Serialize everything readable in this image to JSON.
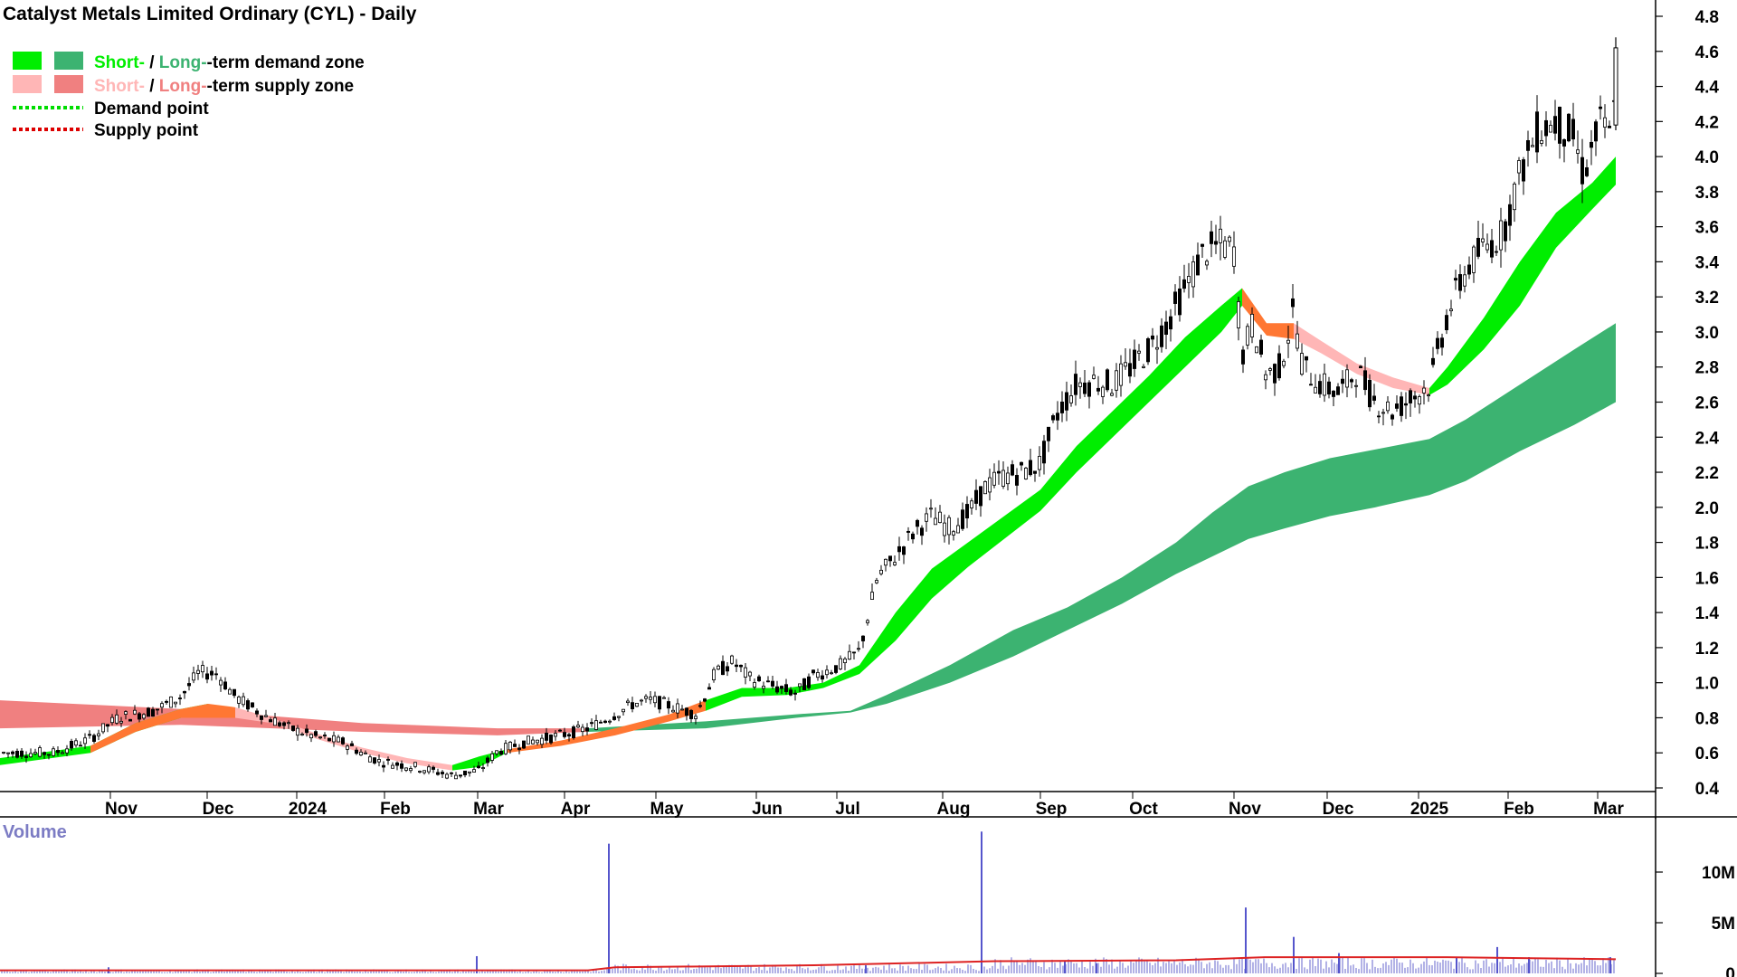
{
  "chart_data": {
    "type": "candlestick",
    "title": "Catalyst Metals Limited Ordinary (CYL) - Daily",
    "legend": [
      {
        "short_label": "Short-",
        "sep": " / ",
        "long_label": "Long-",
        "rest": "-term demand zone",
        "short_color": "#00ee00",
        "long_color": "#3cb371"
      },
      {
        "short_label": "Short-",
        "sep": " / ",
        "long_label": "Long-",
        "rest": "-term supply zone",
        "short_color": "#ffb6b6",
        "long_color": "#f08080"
      },
      {
        "label": "Demand point",
        "color": "#00dd00"
      },
      {
        "label": "Supply point",
        "color": "#dd0000"
      }
    ],
    "x_tick_labels": [
      "Nov",
      "Dec",
      "2024",
      "Feb",
      "Mar",
      "Apr",
      "May",
      "Jun",
      "Jul",
      "Aug",
      "Sep",
      "Oct",
      "Nov",
      "Dec",
      "2025",
      "Feb",
      "Mar"
    ],
    "y_ticks": [
      "0.4",
      "0.6",
      "0.8",
      "1.0",
      "1.2",
      "1.4",
      "1.6",
      "1.8",
      "2.0",
      "2.2",
      "2.4",
      "2.6",
      "2.8",
      "3.0",
      "3.2",
      "3.4",
      "3.6",
      "3.8",
      "4.0",
      "4.2",
      "4.4",
      "4.6",
      "4.8"
    ],
    "ylim": [
      0.35,
      4.9
    ],
    "price_path": [
      [
        0,
        0.6
      ],
      [
        60,
        0.6
      ],
      [
        100,
        0.68
      ],
      [
        130,
        0.8
      ],
      [
        170,
        0.84
      ],
      [
        200,
        0.92
      ],
      [
        220,
        1.06
      ],
      [
        240,
        1.05
      ],
      [
        260,
        0.92
      ],
      [
        290,
        0.82
      ],
      [
        320,
        0.74
      ],
      [
        350,
        0.69
      ],
      [
        380,
        0.66
      ],
      [
        400,
        0.6
      ],
      [
        420,
        0.55
      ],
      [
        460,
        0.52
      ],
      [
        500,
        0.47
      ],
      [
        530,
        0.5
      ],
      [
        550,
        0.61
      ],
      [
        580,
        0.66
      ],
      [
        620,
        0.7
      ],
      [
        650,
        0.74
      ],
      [
        680,
        0.82
      ],
      [
        700,
        0.88
      ],
      [
        720,
        0.9
      ],
      [
        740,
        0.87
      ],
      [
        770,
        0.82
      ],
      [
        790,
        1.05
      ],
      [
        810,
        1.12
      ],
      [
        830,
        1.02
      ],
      [
        860,
        0.97
      ],
      [
        880,
        0.94
      ],
      [
        900,
        1.04
      ],
      [
        930,
        1.1
      ],
      [
        950,
        1.18
      ],
      [
        970,
        1.6
      ],
      [
        990,
        1.72
      ],
      [
        1010,
        1.86
      ],
      [
        1030,
        1.95
      ],
      [
        1050,
        1.88
      ],
      [
        1070,
        1.96
      ],
      [
        1090,
        2.12
      ],
      [
        1110,
        2.18
      ],
      [
        1130,
        2.2
      ],
      [
        1150,
        2.25
      ],
      [
        1170,
        2.55
      ],
      [
        1190,
        2.7
      ],
      [
        1210,
        2.72
      ],
      [
        1230,
        2.7
      ],
      [
        1250,
        2.8
      ],
      [
        1270,
        2.9
      ],
      [
        1290,
        3.05
      ],
      [
        1310,
        3.25
      ],
      [
        1330,
        3.45
      ],
      [
        1350,
        3.5
      ],
      [
        1365,
        3.46
      ],
      [
        1372,
        2.85
      ],
      [
        1385,
        3.05
      ],
      [
        1400,
        2.75
      ],
      [
        1415,
        2.8
      ],
      [
        1430,
        3.12
      ],
      [
        1440,
        2.8
      ],
      [
        1460,
        2.7
      ],
      [
        1480,
        2.65
      ],
      [
        1500,
        2.78
      ],
      [
        1520,
        2.6
      ],
      [
        1540,
        2.55
      ],
      [
        1560,
        2.62
      ],
      [
        1580,
        2.7
      ],
      [
        1600,
        3.1
      ],
      [
        1620,
        3.35
      ],
      [
        1640,
        3.48
      ],
      [
        1660,
        3.55
      ],
      [
        1680,
        3.9
      ],
      [
        1700,
        4.15
      ],
      [
        1720,
        4.2
      ],
      [
        1740,
        4.1
      ],
      [
        1750,
        3.9
      ],
      [
        1770,
        4.2
      ],
      [
        1780,
        4.1
      ],
      [
        1786,
        4.55
      ]
    ],
    "short_zone": [
      [
        0,
        0.57,
        0.53
      ],
      [
        100,
        0.64,
        0.6
      ],
      [
        150,
        0.77,
        0.72
      ],
      [
        200,
        0.85,
        0.8
      ],
      [
        230,
        0.88,
        0.8
      ],
      [
        260,
        0.86,
        0.8
      ],
      [
        300,
        0.8,
        0.77
      ],
      [
        350,
        0.71,
        0.68
      ],
      [
        400,
        0.63,
        0.6
      ],
      [
        450,
        0.57,
        0.54
      ],
      [
        500,
        0.53,
        0.5
      ],
      [
        530,
        0.58,
        0.52
      ],
      [
        560,
        0.62,
        0.6
      ],
      [
        620,
        0.67,
        0.64
      ],
      [
        680,
        0.74,
        0.7
      ],
      [
        740,
        0.82,
        0.78
      ],
      [
        780,
        0.9,
        0.84
      ],
      [
        820,
        0.97,
        0.92
      ],
      [
        870,
        0.97,
        0.93
      ],
      [
        910,
        1.0,
        0.97
      ],
      [
        950,
        1.1,
        1.05
      ],
      [
        990,
        1.4,
        1.24
      ],
      [
        1030,
        1.65,
        1.48
      ],
      [
        1070,
        1.8,
        1.66
      ],
      [
        1110,
        1.95,
        1.82
      ],
      [
        1150,
        2.1,
        1.98
      ],
      [
        1190,
        2.35,
        2.2
      ],
      [
        1230,
        2.55,
        2.4
      ],
      [
        1270,
        2.75,
        2.6
      ],
      [
        1310,
        2.97,
        2.8
      ],
      [
        1350,
        3.15,
        3.0
      ],
      [
        1373,
        3.25,
        3.15
      ],
      [
        1400,
        3.05,
        2.98
      ],
      [
        1430,
        3.05,
        2.96
      ],
      [
        1460,
        2.95,
        2.88
      ],
      [
        1500,
        2.82,
        2.76
      ],
      [
        1540,
        2.74,
        2.68
      ],
      [
        1580,
        2.68,
        2.64
      ],
      [
        1600,
        2.8,
        2.7
      ],
      [
        1640,
        3.08,
        2.9
      ],
      [
        1680,
        3.4,
        3.15
      ],
      [
        1720,
        3.68,
        3.48
      ],
      [
        1760,
        3.85,
        3.7
      ],
      [
        1786,
        4.0,
        3.84
      ]
    ],
    "long_zone": [
      [
        0,
        0.9,
        0.74
      ],
      [
        200,
        0.85,
        0.76
      ],
      [
        400,
        0.77,
        0.72
      ],
      [
        550,
        0.74,
        0.7
      ],
      [
        650,
        0.74,
        0.72
      ],
      [
        780,
        0.78,
        0.74
      ],
      [
        880,
        0.82,
        0.8
      ],
      [
        940,
        0.84,
        0.83
      ],
      [
        980,
        0.93,
        0.88
      ],
      [
        1050,
        1.1,
        1.0
      ],
      [
        1120,
        1.3,
        1.15
      ],
      [
        1180,
        1.43,
        1.3
      ],
      [
        1240,
        1.6,
        1.45
      ],
      [
        1300,
        1.8,
        1.62
      ],
      [
        1340,
        1.97,
        1.72
      ],
      [
        1380,
        2.12,
        1.82
      ],
      [
        1420,
        2.2,
        1.88
      ],
      [
        1470,
        2.28,
        1.95
      ],
      [
        1520,
        2.33,
        2.0
      ],
      [
        1580,
        2.39,
        2.07
      ],
      [
        1620,
        2.5,
        2.15
      ],
      [
        1680,
        2.7,
        2.32
      ],
      [
        1740,
        2.9,
        2.47
      ],
      [
        1786,
        3.05,
        2.6
      ]
    ],
    "volume": {
      "label": "Volume",
      "y_ticks": [
        "0",
        "5M",
        "10M"
      ],
      "ylim": [
        0,
        15
      ],
      "spikes": [
        [
          120,
          0.6
        ],
        [
          527,
          1.7
        ],
        [
          673,
          12.8
        ],
        [
          957,
          0.8
        ],
        [
          1085,
          14.0
        ],
        [
          1177,
          1.2
        ],
        [
          1212,
          1.0
        ],
        [
          1377,
          6.5
        ],
        [
          1430,
          3.6
        ],
        [
          1480,
          2.0
        ],
        [
          1610,
          1.6
        ],
        [
          1655,
          2.6
        ],
        [
          1690,
          1.6
        ],
        [
          1780,
          1.6
        ]
      ],
      "ma": [
        [
          0,
          0.3
        ],
        [
          650,
          0.3
        ],
        [
          680,
          0.6
        ],
        [
          900,
          0.8
        ],
        [
          1100,
          1.2
        ],
        [
          1300,
          1.3
        ],
        [
          1400,
          1.6
        ],
        [
          1600,
          1.6
        ],
        [
          1786,
          1.4
        ]
      ]
    }
  }
}
